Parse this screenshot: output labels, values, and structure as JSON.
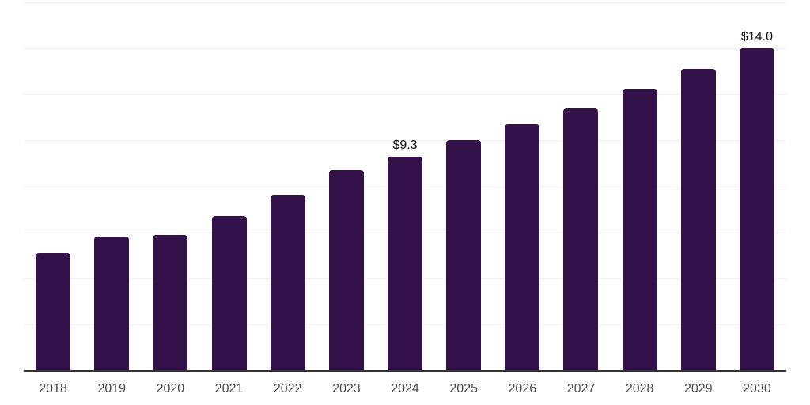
{
  "chart_data": {
    "type": "bar",
    "title": "",
    "xlabel": "",
    "ylabel": "",
    "categories": [
      "2018",
      "2019",
      "2020",
      "2021",
      "2022",
      "2023",
      "2024",
      "2025",
      "2026",
      "2027",
      "2028",
      "2029",
      "2030"
    ],
    "values": [
      5.1,
      5.8,
      5.9,
      6.7,
      7.6,
      8.7,
      9.3,
      10.0,
      10.7,
      11.4,
      12.2,
      13.1,
      14.0
    ],
    "value_labels": [
      "",
      "",
      "",
      "",
      "",
      "",
      "$9.3",
      "",
      "",
      "",
      "",
      "",
      "$14.0"
    ],
    "ylim": [
      0,
      16
    ],
    "grid_step": 2,
    "grid": "on",
    "legend": "none",
    "y_axis_tick_labels": "none",
    "colors": {
      "bar": "#33124A",
      "axis_line": "#333333",
      "gridline": "#F0F0F0",
      "tick_label": "#4A4A4A",
      "value_label": "#111111",
      "background": "#FFFFFF"
    }
  }
}
